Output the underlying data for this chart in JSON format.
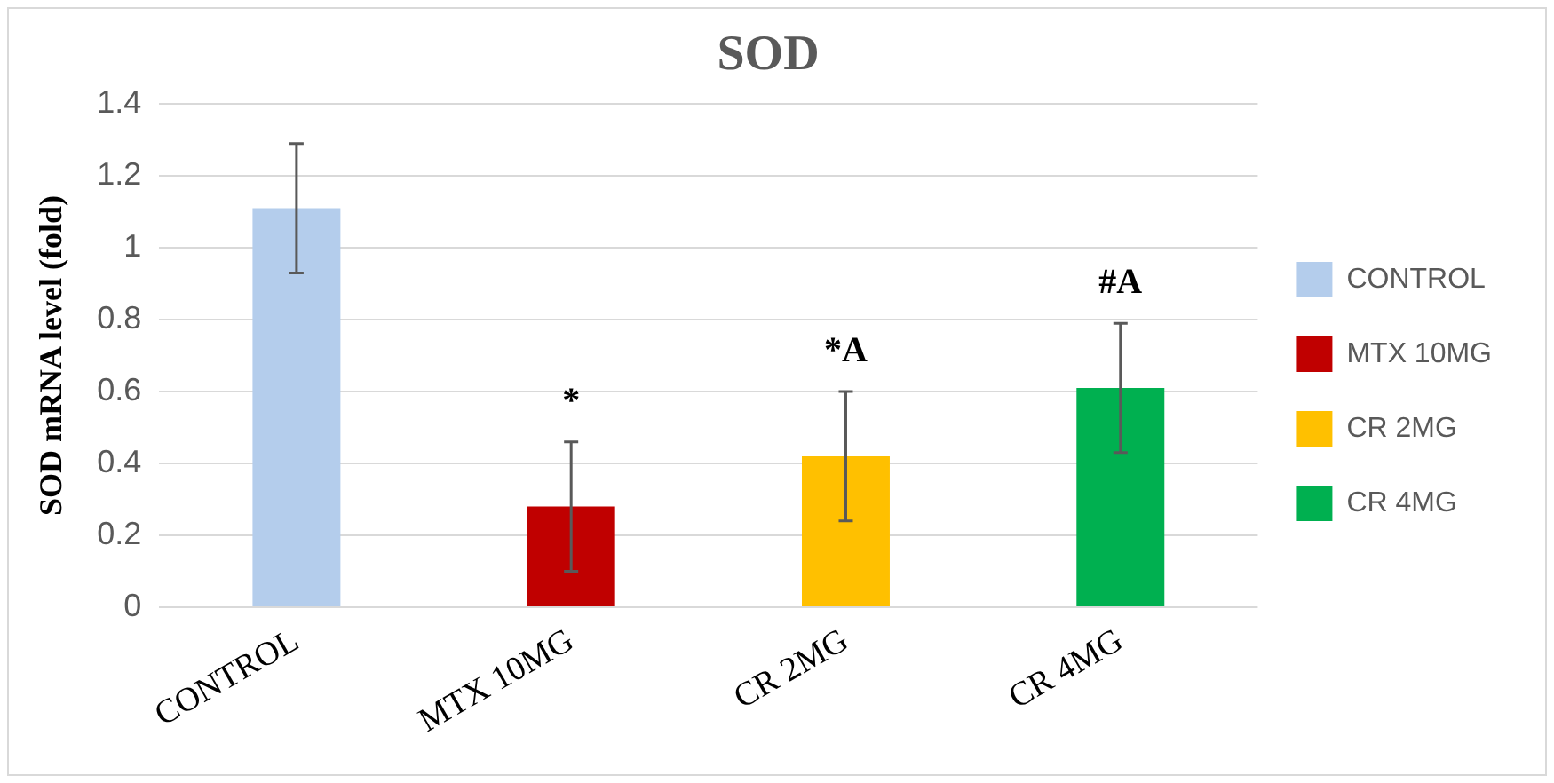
{
  "chart_data": {
    "type": "bar",
    "title": "SOD",
    "ylabel": "SOD mRNA level (fold)",
    "categories": [
      "CONTROL",
      "MTX 10MG",
      "CR 2MG",
      "CR 4MG"
    ],
    "series": [
      {
        "name": "CONTROL",
        "color": "#b4cdec",
        "values": [
          1.11,
          null,
          null,
          null
        ],
        "errors": [
          0.18,
          null,
          null,
          null
        ]
      },
      {
        "name": "MTX 10MG",
        "color": "#c00000",
        "values": [
          null,
          0.28,
          null,
          null
        ],
        "errors": [
          null,
          0.18,
          null,
          null
        ]
      },
      {
        "name": "CR 2MG",
        "color": "#ffc000",
        "values": [
          null,
          null,
          0.42,
          null
        ],
        "errors": [
          null,
          null,
          0.18,
          null
        ]
      },
      {
        "name": "CR 4MG",
        "color": "#00b050",
        "values": [
          null,
          null,
          null,
          0.61
        ],
        "errors": [
          null,
          null,
          null,
          0.18
        ]
      }
    ],
    "ylim": [
      0,
      1.4
    ],
    "yticks": [
      0,
      {
        "value": 0.2,
        "label": "0.2"
      },
      {
        "value": 0.4,
        "label": "0.4"
      },
      {
        "value": 0.6,
        "label": "0.6"
      },
      {
        "value": 0.8,
        "label": "0.8"
      },
      1,
      {
        "value": 1.2,
        "label": "1.2"
      },
      {
        "value": 1.4,
        "label": "1.4"
      }
    ],
    "grid": "y",
    "legend": "right",
    "annotations": [
      {
        "text": "*",
        "x": "MTX 10MG",
        "y": 0.28
      },
      {
        "text": "*A",
        "x": "CR 2MG",
        "y": 0.42
      },
      {
        "text": "#A",
        "x": "CR 4MG",
        "y": 0.61
      }
    ]
  }
}
